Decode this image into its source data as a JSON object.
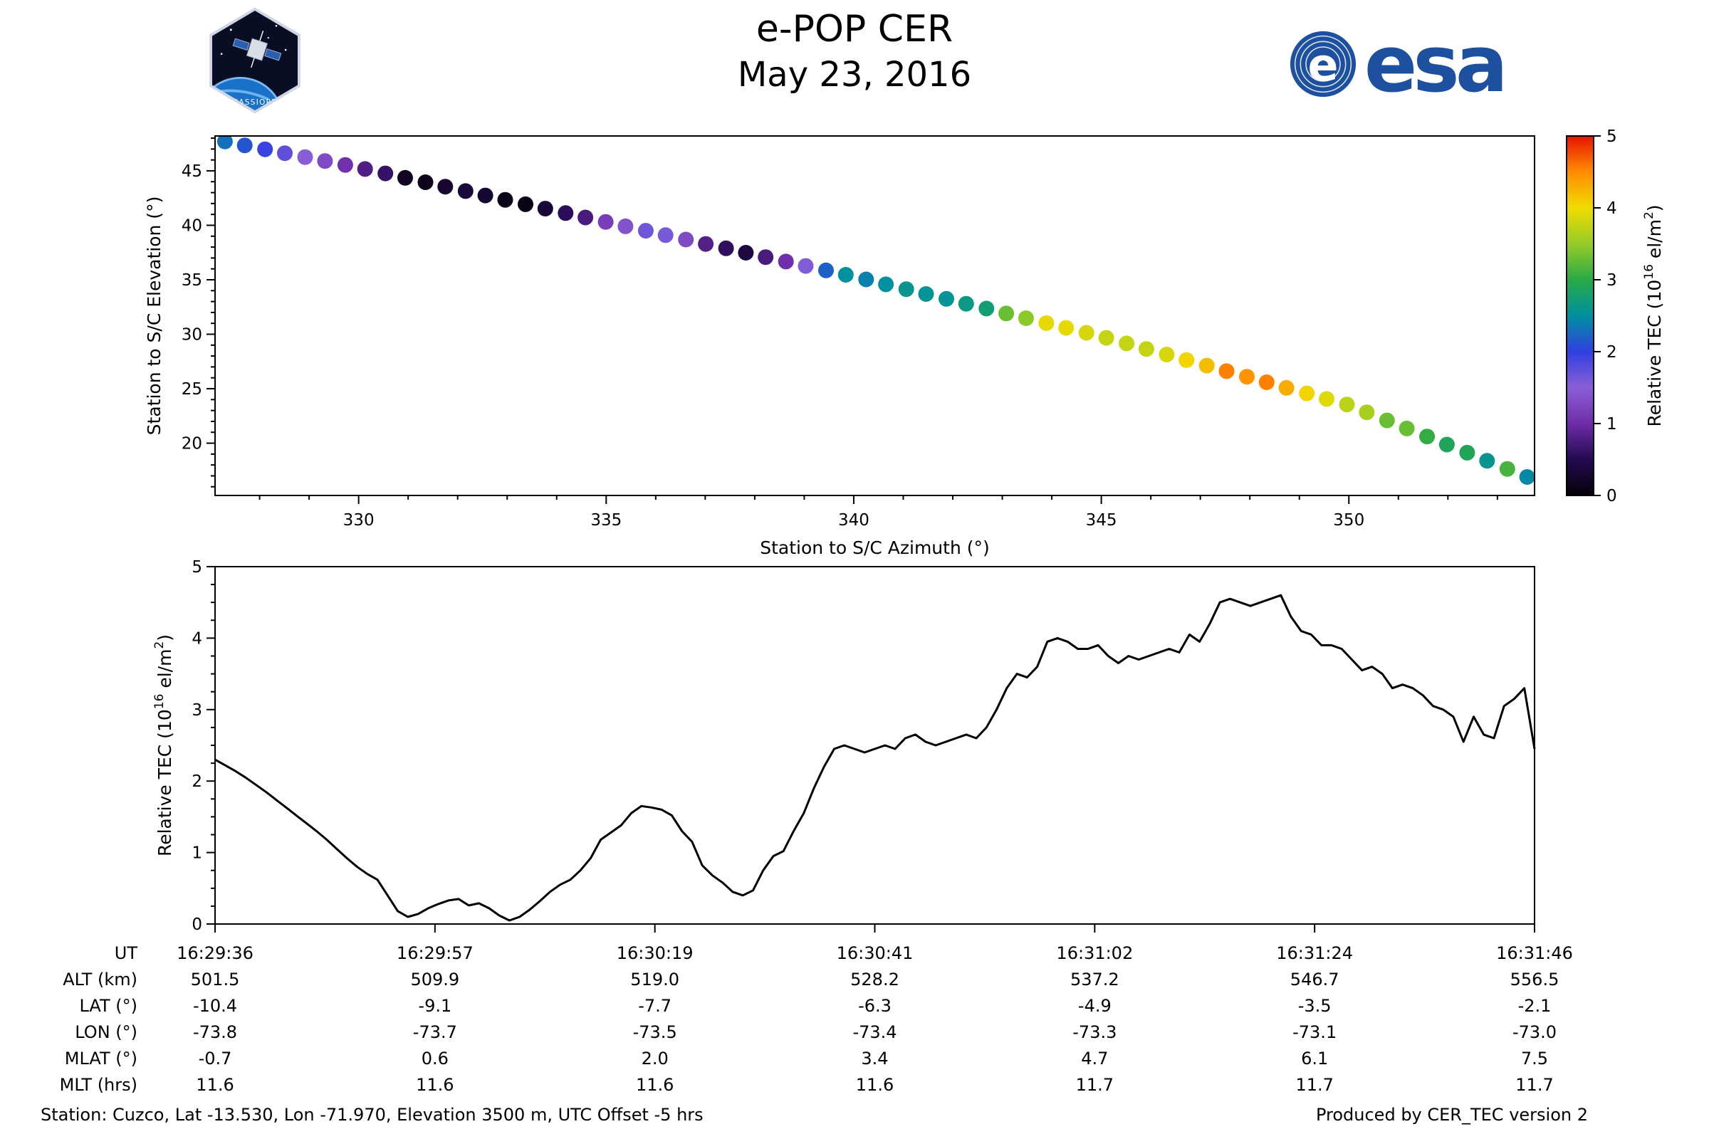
{
  "header": {
    "title": "e-POP CER",
    "date": "May 23, 2016",
    "esa_logo_text": "esa",
    "esa_disc_letter": "e",
    "mission_patch_text": "CASSIOPE"
  },
  "footer": {
    "station": "Station: Cuzco, Lat -13.530, Lon -71.970, Elevation 3500 m, UTC Offset -5 hrs",
    "produced_by": "Produced by CER_TEC version 2"
  },
  "colors": {
    "esa_blue": "#1d509f",
    "patch_navy": "#0a0e24",
    "earth_blue": "#1a72c8",
    "line_color": "#000000"
  },
  "colormap": {
    "stops": [
      [
        0.0,
        "#050208"
      ],
      [
        0.1,
        "#230a50"
      ],
      [
        0.2,
        "#6e2ca8"
      ],
      [
        0.3,
        "#8a5fd6"
      ],
      [
        0.4,
        "#3040e0"
      ],
      [
        0.5,
        "#0090a0"
      ],
      [
        0.6,
        "#28aa46"
      ],
      [
        0.7,
        "#96cc28"
      ],
      [
        0.8,
        "#f0dc00"
      ],
      [
        0.9,
        "#ff8c00"
      ],
      [
        1.0,
        "#e61400"
      ]
    ]
  },
  "chart_data": [
    {
      "type": "scatter",
      "title": "",
      "xlabel": "Station to S/C Azimuth (°)",
      "ylabel": "Station to S/C Elevation (°)",
      "xlim": [
        327.1,
        353.75
      ],
      "ylim": [
        15.2,
        48.2
      ],
      "xticks": [
        330,
        335,
        340,
        345,
        350
      ],
      "yticks": [
        20,
        25,
        30,
        35,
        40,
        45
      ],
      "x_minor_step": 1,
      "y_minor_step": 1,
      "grid": false,
      "colorbar": {
        "label_parts": [
          [
            "Relative TEC (10",
            0
          ],
          [
            "16",
            1
          ],
          [
            " el/m",
            0
          ],
          [
            "2",
            1
          ],
          [
            ")",
            0
          ]
        ],
        "min": 0,
        "max": 5,
        "ticks": [
          0,
          1,
          2,
          3,
          4,
          5
        ]
      },
      "azimuth": [
        327.3,
        327.7,
        328.11,
        328.51,
        328.92,
        329.32,
        329.73,
        330.13,
        330.54,
        330.94,
        331.35,
        331.75,
        332.16,
        332.56,
        332.96,
        333.37,
        333.77,
        334.18,
        334.58,
        334.99,
        335.39,
        335.8,
        336.2,
        336.61,
        337.01,
        337.42,
        337.82,
        338.22,
        338.63,
        339.03,
        339.44,
        339.84,
        340.25,
        340.65,
        341.06,
        341.46,
        341.87,
        342.27,
        342.68,
        343.08,
        343.48,
        343.89,
        344.29,
        344.7,
        345.1,
        345.51,
        345.91,
        346.32,
        346.72,
        347.13,
        347.53,
        347.94,
        348.34,
        348.74,
        349.15,
        349.55,
        349.96,
        350.36,
        350.77,
        351.17,
        351.58,
        351.98,
        352.39,
        352.79,
        353.2,
        353.6
      ],
      "elevation": [
        47.7,
        47.34,
        46.98,
        46.62,
        46.26,
        45.9,
        45.54,
        45.17,
        44.76,
        44.36,
        43.95,
        43.55,
        43.14,
        42.74,
        42.34,
        41.93,
        41.53,
        41.12,
        40.72,
        40.31,
        39.91,
        39.5,
        39.1,
        38.69,
        38.29,
        37.89,
        37.48,
        37.08,
        36.67,
        36.27,
        35.86,
        35.46,
        35.03,
        34.58,
        34.14,
        33.69,
        33.25,
        32.8,
        32.36,
        31.91,
        31.47,
        31.02,
        30.58,
        30.13,
        29.67,
        29.16,
        28.65,
        28.14,
        27.63,
        27.12,
        26.61,
        26.1,
        25.59,
        25.08,
        24.57,
        24.06,
        23.55,
        22.83,
        22.09,
        21.35,
        20.61,
        19.87,
        19.13,
        18.38,
        17.64,
        16.9
      ],
      "tec": [
        2.3,
        2.14,
        1.95,
        1.74,
        1.52,
        1.3,
        1.05,
        0.8,
        0.62,
        0.18,
        0.14,
        0.28,
        0.35,
        0.29,
        0.12,
        0.1,
        0.32,
        0.55,
        0.75,
        1.18,
        1.38,
        1.65,
        1.6,
        1.3,
        0.82,
        0.58,
        0.4,
        0.75,
        1.02,
        1.55,
        2.2,
        2.5,
        2.4,
        2.5,
        2.6,
        2.55,
        2.55,
        2.65,
        2.75,
        3.3,
        3.45,
        3.95,
        3.95,
        3.85,
        3.75,
        3.75,
        3.75,
        3.85,
        4.05,
        4.2,
        4.55,
        4.45,
        4.55,
        4.3,
        4.05,
        3.9,
        3.7,
        3.6,
        3.3,
        3.3,
        3.05,
        2.9,
        2.9,
        2.6,
        3.15,
        2.45
      ]
    },
    {
      "type": "line",
      "title": "",
      "ylabel_parts": [
        [
          "Relative TEC (10",
          0
        ],
        [
          "16",
          1
        ],
        [
          " el/m",
          0
        ],
        [
          "2",
          1
        ],
        [
          ")",
          0
        ]
      ],
      "ylim": [
        0,
        5
      ],
      "yticks": [
        0,
        1,
        2,
        3,
        4,
        5
      ],
      "y_minor_step": 0.25,
      "grid": false,
      "duration_s": 130,
      "t_step_s": 1,
      "tec": [
        2.3,
        2.22,
        2.14,
        2.05,
        1.95,
        1.85,
        1.74,
        1.63,
        1.52,
        1.41,
        1.3,
        1.18,
        1.05,
        0.92,
        0.8,
        0.7,
        0.62,
        0.4,
        0.18,
        0.1,
        0.14,
        0.22,
        0.28,
        0.33,
        0.35,
        0.26,
        0.29,
        0.22,
        0.12,
        0.05,
        0.1,
        0.2,
        0.32,
        0.45,
        0.55,
        0.62,
        0.75,
        0.92,
        1.18,
        1.28,
        1.38,
        1.55,
        1.65,
        1.63,
        1.6,
        1.52,
        1.3,
        1.15,
        0.82,
        0.68,
        0.58,
        0.45,
        0.4,
        0.47,
        0.75,
        0.95,
        1.02,
        1.3,
        1.55,
        1.9,
        2.2,
        2.45,
        2.5,
        2.45,
        2.4,
        2.45,
        2.5,
        2.45,
        2.6,
        2.65,
        2.55,
        2.5,
        2.55,
        2.6,
        2.65,
        2.6,
        2.75,
        3.0,
        3.3,
        3.5,
        3.45,
        3.6,
        3.95,
        4.0,
        3.95,
        3.85,
        3.85,
        3.9,
        3.75,
        3.65,
        3.75,
        3.7,
        3.75,
        3.8,
        3.85,
        3.8,
        4.05,
        3.95,
        4.2,
        4.5,
        4.55,
        4.5,
        4.45,
        4.5,
        4.55,
        4.6,
        4.3,
        4.1,
        4.05,
        3.9,
        3.9,
        3.85,
        3.7,
        3.55,
        3.6,
        3.5,
        3.3,
        3.35,
        3.3,
        3.2,
        3.05,
        3.0,
        2.9,
        2.55,
        2.9,
        2.65,
        2.6,
        3.05,
        3.15,
        3.3,
        2.45
      ],
      "axis_table": {
        "rows": [
          {
            "label": "UT",
            "values": [
              "16:29:36",
              "16:29:57",
              "16:30:19",
              "16:30:41",
              "16:31:02",
              "16:31:24",
              "16:31:46"
            ]
          },
          {
            "label": "ALT (km)",
            "values": [
              "501.5",
              "509.9",
              "519.0",
              "528.2",
              "537.2",
              "546.7",
              "556.5"
            ]
          },
          {
            "label": "LAT (°)",
            "values": [
              "-10.4",
              "-9.1",
              "-7.7",
              "-6.3",
              "-4.9",
              "-3.5",
              "-2.1"
            ]
          },
          {
            "label": "LON (°)",
            "values": [
              "-73.8",
              "-73.7",
              "-73.5",
              "-73.4",
              "-73.3",
              "-73.1",
              "-73.0"
            ]
          },
          {
            "label": "MLAT (°)",
            "values": [
              "-0.7",
              "0.6",
              "2.0",
              "3.4",
              "4.7",
              "6.1",
              "7.5"
            ]
          },
          {
            "label": "MLT (hrs)",
            "values": [
              "11.6",
              "11.6",
              "11.6",
              "11.6",
              "11.7",
              "11.7",
              "11.7"
            ]
          }
        ]
      }
    }
  ]
}
